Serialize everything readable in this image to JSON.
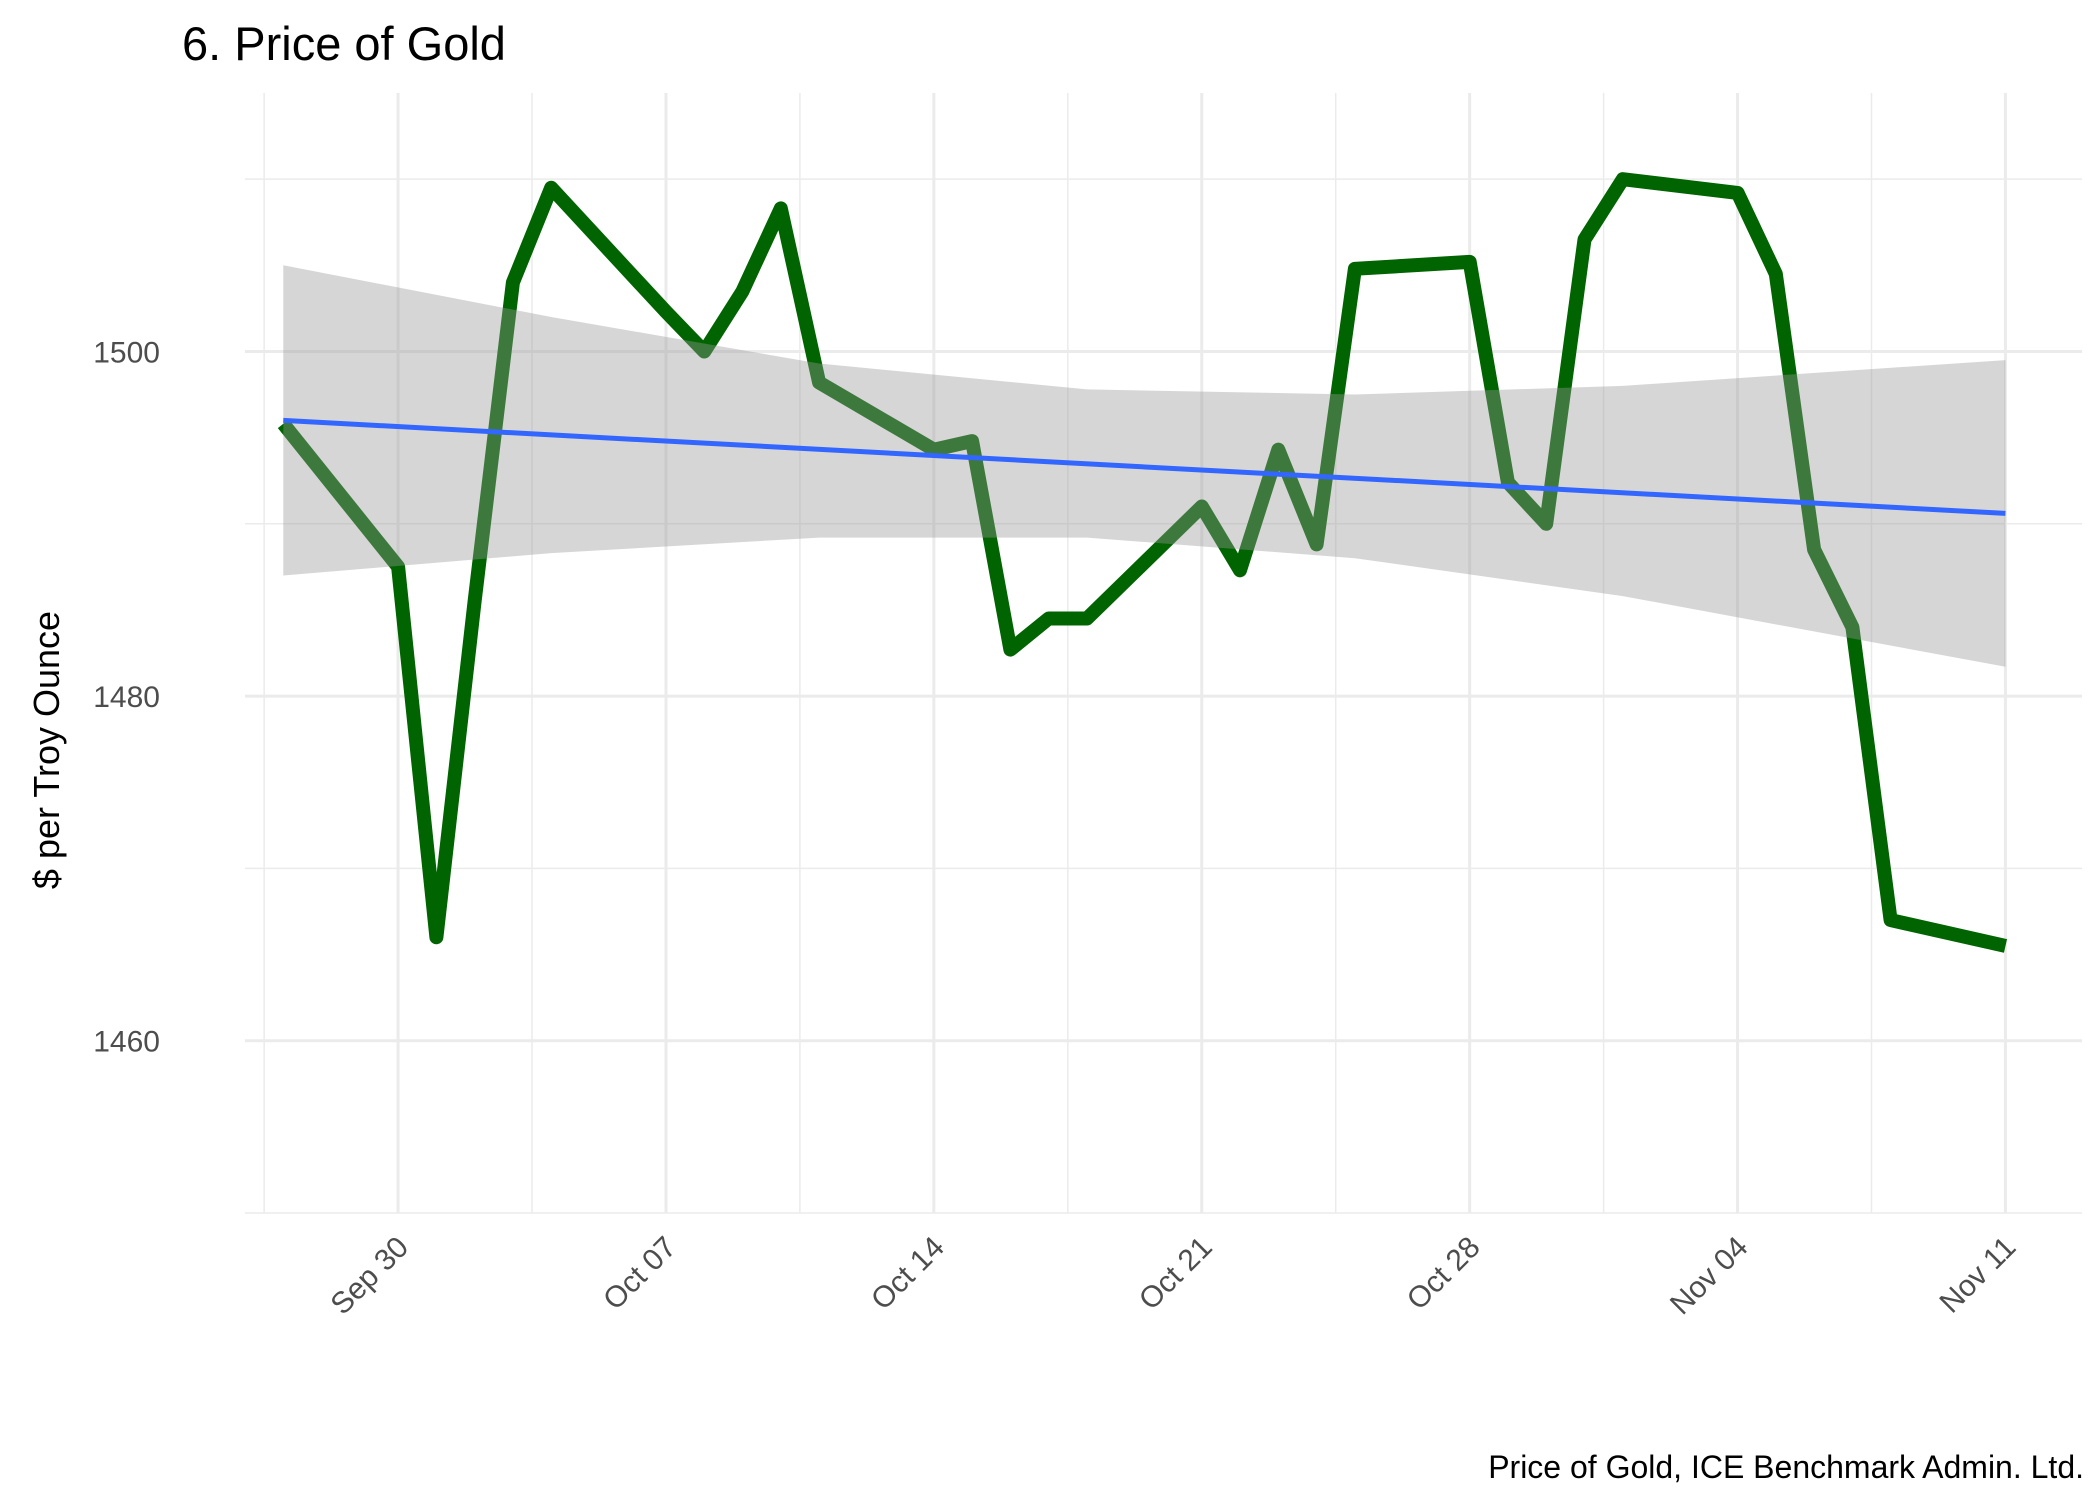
{
  "chart_data": {
    "type": "line",
    "title": "6. Price of Gold",
    "xlabel": "",
    "ylabel": "$ per Troy Ounce",
    "caption": "Price of Gold, ICE Benchmark Admin. Ltd.",
    "x_ticks": [
      "Sep 30",
      "Oct 07",
      "Oct 14",
      "Oct 21",
      "Oct 28",
      "Nov 04",
      "Nov 11"
    ],
    "x_tick_dates": [
      "2019-09-30",
      "2019-10-07",
      "2019-10-14",
      "2019-10-21",
      "2019-10-28",
      "2019-11-04",
      "2019-11-11"
    ],
    "xlim": [
      "2019-09-26",
      "2019-11-13"
    ],
    "y_ticks": [
      1460,
      1480,
      1500
    ],
    "ylim": [
      1450,
      1515
    ],
    "grid": true,
    "series": [
      {
        "color": "#006400",
        "x": [
          "2019-09-27",
          "2019-09-30",
          "2019-10-01",
          "2019-10-02",
          "2019-10-03",
          "2019-10-04",
          "2019-10-07",
          "2019-10-08",
          "2019-10-09",
          "2019-10-10",
          "2019-10-11",
          "2019-10-14",
          "2019-10-15",
          "2019-10-16",
          "2019-10-17",
          "2019-10-18",
          "2019-10-21",
          "2019-10-22",
          "2019-10-23",
          "2019-10-24",
          "2019-10-25",
          "2019-10-28",
          "2019-10-29",
          "2019-10-30",
          "2019-10-31",
          "2019-11-01",
          "2019-11-04",
          "2019-11-05",
          "2019-11-06",
          "2019-11-07",
          "2019-11-08",
          "2019-11-11"
        ],
        "y": [
          1495.8,
          1487.5,
          1466.0,
          1485.5,
          1504.0,
          1509.5,
          1502.3,
          1500.0,
          1503.5,
          1508.3,
          1498.2,
          1494.3,
          1494.8,
          1482.7,
          1484.5,
          1484.5,
          1491.0,
          1487.3,
          1494.3,
          1488.8,
          1504.8,
          1505.2,
          1492.4,
          1490.0,
          1506.5,
          1510.0,
          1509.2,
          1504.5,
          1488.5,
          1484.0,
          1467.0,
          1465.5
        ]
      }
    ],
    "trend": {
      "color": "#3366FF",
      "band_color": "#999999",
      "x": [
        "2019-09-27",
        "2019-11-11"
      ],
      "y": [
        1496.0,
        1490.6
      ],
      "band_x": [
        "2019-09-27",
        "2019-10-04",
        "2019-10-11",
        "2019-10-18",
        "2019-10-25",
        "2019-11-01",
        "2019-11-11"
      ],
      "band_lower": [
        1487.0,
        1488.3,
        1489.2,
        1489.2,
        1488.0,
        1485.8,
        1481.7
      ],
      "band_upper": [
        1505.0,
        1502.0,
        1499.3,
        1497.8,
        1497.5,
        1498.0,
        1499.5
      ]
    }
  }
}
